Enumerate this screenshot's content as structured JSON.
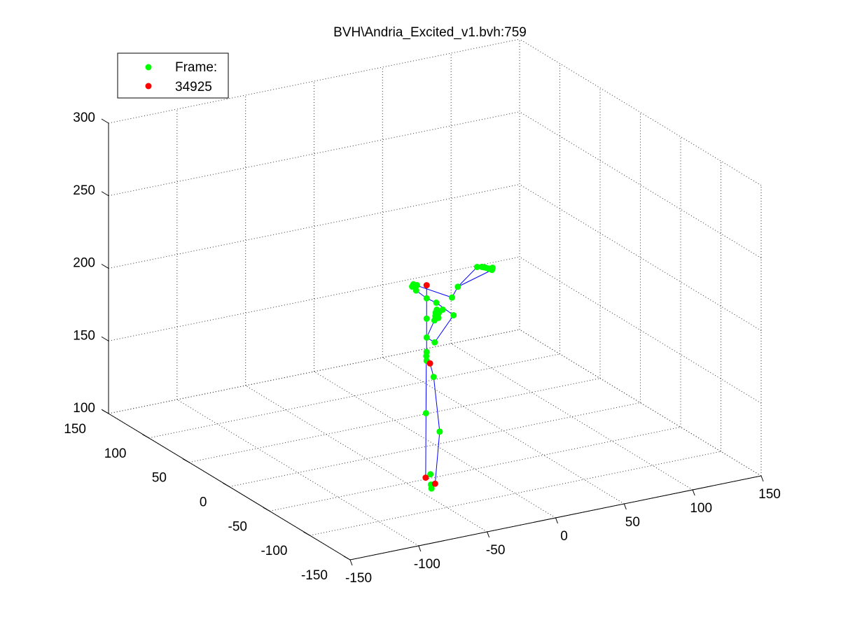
{
  "chart_data": {
    "type": "scatter",
    "projection": "3d",
    "title": "BVH\\Andria_Excited_v1.bvh:759",
    "grid": true,
    "legend_position": "top-left",
    "legend": [
      {
        "label": "Frame:",
        "color": "#00ff00"
      },
      {
        "label": "34925",
        "color": "#ff0000"
      }
    ],
    "axes": {
      "x": {
        "range": [
          -150,
          150
        ],
        "ticks": [
          "-150",
          "-100",
          "-50",
          "0",
          "50",
          "100",
          "150"
        ]
      },
      "y": {
        "range": [
          -150,
          150
        ],
        "ticks": [
          "-150",
          "-100",
          "-50",
          "0",
          "50",
          "100",
          "150"
        ]
      },
      "z": {
        "range": [
          100,
          300
        ],
        "ticks": [
          "100",
          "150",
          "200",
          "250",
          "300"
        ]
      }
    },
    "series": [
      {
        "color": "#00ff00",
        "points": [
          [
            -6,
            12,
            207
          ],
          [
            -6,
            13,
            203
          ],
          [
            -6,
            18,
            204
          ],
          [
            -6,
            0,
            202
          ],
          [
            -6,
            -12,
            203
          ],
          [
            -4,
            -30,
            200
          ],
          [
            2,
            30,
            200
          ],
          [
            -6,
            0,
            188
          ],
          [
            -6,
            0,
            175
          ],
          [
            -6,
            -10,
            175
          ],
          [
            -6,
            0,
            165
          ],
          [
            -6,
            0,
            159
          ],
          [
            -5,
            -7,
            150
          ],
          [
            2,
            14,
            156
          ],
          [
            0,
            -6,
            111
          ],
          [
            0,
            11,
            118
          ],
          [
            -4,
            -2,
            74
          ],
          [
            -6,
            -6,
            73
          ],
          [
            5,
            14,
            74
          ],
          [
            15,
            26,
            174
          ],
          [
            18,
            30,
            175
          ],
          [
            20,
            33,
            176
          ],
          [
            22,
            35,
            177
          ],
          [
            24,
            31,
            178
          ],
          [
            22,
            33,
            172
          ],
          [
            24,
            36,
            174
          ],
          [
            36,
            40,
            181
          ],
          [
            45,
            48,
            184
          ],
          [
            72,
            70,
            185
          ],
          [
            76,
            71,
            184
          ],
          [
            78,
            72,
            183
          ],
          [
            80,
            73,
            182
          ],
          [
            82,
            73,
            181
          ],
          [
            84,
            72,
            180
          ],
          [
            85,
            73,
            181
          ],
          [
            84,
            74,
            180
          ]
        ]
      },
      {
        "color": "#ff0000",
        "points": [
          [
            -6,
            0,
            211
          ],
          [
            0,
            6,
            154
          ],
          [
            -1,
            -2,
            74
          ],
          [
            -2,
            8,
            75
          ]
        ]
      }
    ],
    "bones": [
      [
        [
          -6,
          -12,
          203
        ],
        [
          -6,
          0,
          202
        ]
      ],
      [
        [
          -6,
          0,
          202
        ],
        [
          -6,
          13,
          203
        ]
      ],
      [
        [
          -6,
          0,
          202
        ],
        [
          -6,
          0,
          211
        ]
      ],
      [
        [
          -6,
          0,
          202
        ],
        [
          -6,
          0,
          188
        ]
      ],
      [
        [
          -6,
          0,
          188
        ],
        [
          -6,
          0,
          175
        ]
      ],
      [
        [
          -6,
          0,
          175
        ],
        [
          -6,
          -10,
          175
        ]
      ],
      [
        [
          -6,
          -12,
          203
        ],
        [
          -4,
          -30,
          200
        ]
      ],
      [
        [
          -4,
          -30,
          200
        ],
        [
          -6,
          -10,
          175
        ]
      ],
      [
        [
          -6,
          0,
          175
        ],
        [
          15,
          26,
          174
        ]
      ],
      [
        [
          -6,
          13,
          203
        ],
        [
          2,
          30,
          200
        ]
      ],
      [
        [
          2,
          30,
          200
        ],
        [
          36,
          40,
          181
        ]
      ],
      [
        [
          36,
          40,
          181
        ],
        [
          45,
          48,
          184
        ]
      ],
      [
        [
          45,
          48,
          184
        ],
        [
          72,
          70,
          185
        ]
      ],
      [
        [
          72,
          70,
          185
        ],
        [
          80,
          73,
          182
        ]
      ],
      [
        [
          45,
          48,
          184
        ],
        [
          84,
          72,
          180
        ]
      ],
      [
        [
          -6,
          0,
          175
        ],
        [
          -6,
          0,
          165
        ]
      ],
      [
        [
          -6,
          0,
          165
        ],
        [
          -6,
          0,
          159
        ]
      ],
      [
        [
          -6,
          0,
          159
        ],
        [
          0,
          6,
          154
        ]
      ],
      [
        [
          0,
          6,
          154
        ],
        [
          -5,
          -7,
          150
        ]
      ],
      [
        [
          -5,
          -7,
          150
        ],
        [
          0,
          -6,
          111
        ]
      ],
      [
        [
          0,
          -6,
          111
        ],
        [
          -1,
          -2,
          74
        ]
      ],
      [
        [
          -1,
          -2,
          74
        ],
        [
          -6,
          -6,
          73
        ]
      ],
      [
        [
          0,
          6,
          154
        ],
        [
          2,
          14,
          156
        ]
      ],
      [
        [
          2,
          14,
          156
        ],
        [
          0,
          11,
          118
        ]
      ],
      [
        [
          0,
          11,
          118
        ],
        [
          -2,
          8,
          75
        ]
      ],
      [
        [
          -2,
          8,
          75
        ],
        [
          5,
          14,
          74
        ]
      ]
    ]
  }
}
